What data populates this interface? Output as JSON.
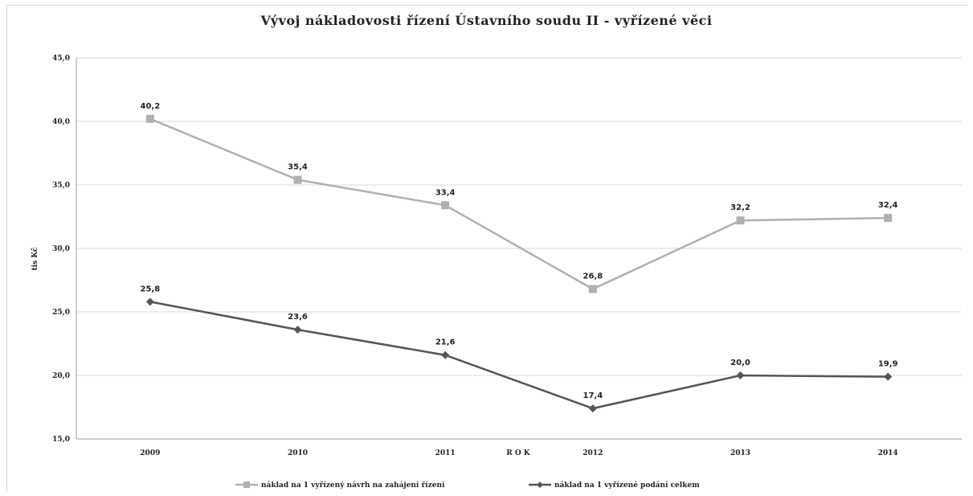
{
  "chart_data": {
    "type": "line",
    "title": "Vývoj nákladovosti řízení Ústavního soudu II - vyřízené věci",
    "xlabel": "R O K",
    "ylabel": "tis Kč",
    "categories": [
      "2009",
      "2010",
      "2011",
      "2012",
      "2013",
      "2014"
    ],
    "ylim": [
      15,
      45
    ],
    "yticks": [
      "15,0",
      "20,0",
      "25,0",
      "30,0",
      "35,0",
      "40,0",
      "45,0"
    ],
    "grid": true,
    "legend_position": "bottom",
    "series": [
      {
        "name": "náklad na 1 vyřízený návrh na zahájení řízení",
        "values": [
          40.2,
          35.4,
          33.4,
          26.8,
          32.2,
          32.4
        ],
        "labels": [
          "40,2",
          "35,4",
          "33,4",
          "26,8",
          "32,2",
          "32,4"
        ],
        "color": "#b0b0b0",
        "marker": "square"
      },
      {
        "name": "náklad na 1 vyřízené podání celkem",
        "values": [
          25.8,
          23.6,
          21.6,
          17.4,
          20.0,
          19.9
        ],
        "labels": [
          "25,8",
          "23,6",
          "21,6",
          "17,4",
          "20,0",
          "19,9"
        ],
        "color": "#555555",
        "marker": "diamond"
      }
    ]
  }
}
